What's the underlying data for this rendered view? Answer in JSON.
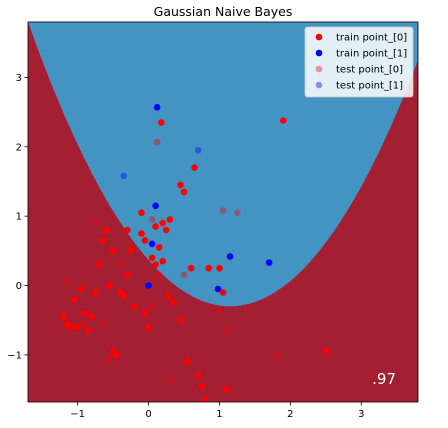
{
  "chart_data": {
    "type": "scatter",
    "title": "Gaussian Naive Bayes",
    "xlabel": "",
    "ylabel": "",
    "xlim": [
      -1.7,
      3.8
    ],
    "ylim": [
      -1.68,
      3.8
    ],
    "x_ticks": [
      -1,
      0,
      1,
      2,
      3
    ],
    "y_ticks": [
      -1,
      0,
      1,
      2,
      3
    ],
    "x_tick_labels": [
      "−1",
      "0",
      "1",
      "2",
      "3"
    ],
    "y_tick_labels": [
      "−1",
      "0",
      "1",
      "2",
      "3"
    ],
    "score_label": ".97",
    "legend_position": "upper right",
    "background": {
      "type": "filled-contour",
      "colormap": "RdBu",
      "shape": "parabola",
      "vertex_x": 1.15,
      "level_vertex_y": [
        3.8,
        2.3,
        1.7,
        1.2,
        0.6,
        0.05,
        -0.3
      ],
      "level_half_width_at_top": [
        1.35,
        1.65,
        1.9,
        2.15,
        2.35,
        2.6,
        2.85
      ],
      "band_colors": [
        "#a51f33",
        "#d6604d",
        "#f4a582",
        "#fddbc7",
        "#f7f7f7",
        "#d1e5f0",
        "#92c5de",
        "#4393c3",
        "#2c66a8"
      ]
    },
    "series": [
      {
        "name": "train point_[0]",
        "color": "#ff0000",
        "alpha": 1.0,
        "points": [
          [
            -1.15,
            -0.55
          ],
          [
            -1.1,
            -0.6
          ],
          [
            -1.05,
            -0.2
          ],
          [
            -1.2,
            -0.45
          ],
          [
            -1.0,
            -0.6
          ],
          [
            -0.95,
            -0.05
          ],
          [
            -0.9,
            -0.4
          ],
          [
            -0.85,
            -0.65
          ],
          [
            -0.8,
            -0.45
          ],
          [
            -0.75,
            -0.1
          ],
          [
            -0.7,
            0.3
          ],
          [
            -0.65,
            0.65
          ],
          [
            -0.6,
            0.8
          ],
          [
            -0.55,
            0.0
          ],
          [
            -0.5,
            0.5
          ],
          [
            -0.5,
            -0.95
          ],
          [
            -0.45,
            -1.0
          ],
          [
            -0.4,
            -0.1
          ],
          [
            -0.35,
            -0.15
          ],
          [
            -0.3,
            0.15
          ],
          [
            -0.3,
            0.8
          ],
          [
            -0.25,
            0.5
          ],
          [
            -0.2,
            -0.3
          ],
          [
            -0.1,
            0.75
          ],
          [
            -0.1,
            1.05
          ],
          [
            -0.05,
            -0.4
          ],
          [
            0.0,
            -0.6
          ],
          [
            0.05,
            0.4
          ],
          [
            0.1,
            0.85
          ],
          [
            0.15,
            0.55
          ],
          [
            0.2,
            0.9
          ],
          [
            0.25,
            0.8
          ],
          [
            0.28,
            -0.15
          ],
          [
            0.35,
            -0.25
          ],
          [
            0.45,
            -0.5
          ],
          [
            0.45,
            1.45
          ],
          [
            0.5,
            1.35
          ],
          [
            0.55,
            -1.1
          ],
          [
            0.6,
            0.25
          ],
          [
            0.65,
            1.7
          ],
          [
            0.7,
            -1.3
          ],
          [
            0.75,
            -1.45
          ],
          [
            0.8,
            -1.65
          ],
          [
            0.85,
            0.25
          ],
          [
            1.0,
            0.25
          ],
          [
            1.05,
            -0.1
          ],
          [
            1.1,
            -1.5
          ],
          [
            0.1,
            0.3
          ],
          [
            0.3,
            0.95
          ],
          [
            0.18,
            2.35
          ],
          [
            1.9,
            2.38
          ],
          [
            2.5,
            -0.95
          ],
          [
            0.2,
            0.35
          ],
          [
            -0.05,
            0.65
          ]
        ]
      },
      {
        "name": "train point_[1]",
        "color": "#0000ff",
        "alpha": 1.0,
        "points": [
          [
            0.12,
            2.57
          ],
          [
            0.1,
            1.15
          ],
          [
            0.05,
            0.6
          ],
          [
            0.0,
            0.0
          ],
          [
            0.98,
            -0.05
          ],
          [
            1.15,
            0.42
          ],
          [
            1.7,
            0.33
          ]
        ]
      },
      {
        "name": "test point_[0]",
        "color": "#ff0000",
        "alpha": 0.4,
        "points": [
          [
            0.12,
            2.07
          ],
          [
            -0.75,
            0.9
          ],
          [
            -0.65,
            -0.55
          ],
          [
            -0.9,
            -0.55
          ],
          [
            -1.15,
            0.05
          ],
          [
            -0.4,
            0.3
          ],
          [
            0.05,
            0.95
          ],
          [
            0.15,
            0.15
          ],
          [
            0.05,
            -0.3
          ],
          [
            0.5,
            0.15
          ],
          [
            1.05,
            1.08
          ],
          [
            1.25,
            1.05
          ],
          [
            1.0,
            -0.35
          ],
          [
            1.1,
            -0.65
          ],
          [
            1.8,
            -1.0
          ],
          [
            -0.55,
            -1.05
          ],
          [
            0.3,
            -1.35
          ],
          [
            -0.25,
            0.55
          ]
        ]
      },
      {
        "name": "test point_[1]",
        "color": "#0000ff",
        "alpha": 0.4,
        "points": [
          [
            -0.35,
            1.58
          ],
          [
            0.7,
            1.95
          ]
        ]
      }
    ]
  }
}
